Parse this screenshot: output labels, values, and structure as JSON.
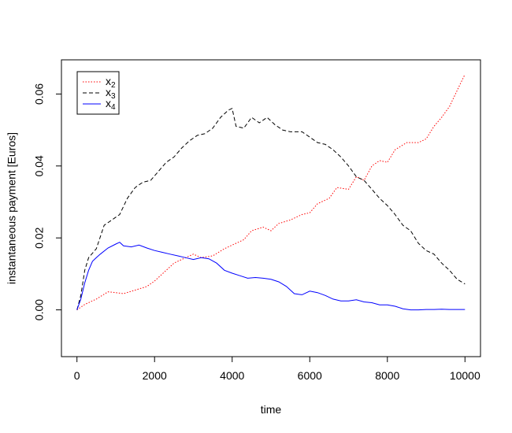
{
  "chart_data": {
    "type": "line",
    "title": "",
    "xlabel": "time",
    "ylabel": "instantaneous payment [Euros]",
    "xlim": [
      -400,
      10400
    ],
    "ylim": [
      -0.013,
      0.0695
    ],
    "xticks": [
      0,
      2000,
      4000,
      6000,
      8000,
      10000
    ],
    "yticks": [
      0.0,
      0.02,
      0.04,
      0.06
    ],
    "xtick_labels": [
      "0",
      "2000",
      "4000",
      "6000",
      "8000",
      "10000"
    ],
    "ytick_labels": [
      "0.00",
      "0.02",
      "0.04",
      "0.06"
    ],
    "grid": false,
    "legend_position": "top-left",
    "series": [
      {
        "name": "x",
        "name_sub": "2",
        "color": "#ff0000",
        "dash": "dotted",
        "points": [
          [
            0,
            0
          ],
          [
            200,
            0.0015
          ],
          [
            500,
            0.003
          ],
          [
            800,
            0.005
          ],
          [
            1000,
            0.0048
          ],
          [
            1200,
            0.0045
          ],
          [
            1500,
            0.0055
          ],
          [
            1800,
            0.0065
          ],
          [
            2000,
            0.008
          ],
          [
            2200,
            0.01
          ],
          [
            2500,
            0.013
          ],
          [
            2800,
            0.0145
          ],
          [
            3000,
            0.0155
          ],
          [
            3200,
            0.0145
          ],
          [
            3500,
            0.015
          ],
          [
            3800,
            0.017
          ],
          [
            4000,
            0.018
          ],
          [
            4300,
            0.0195
          ],
          [
            4500,
            0.022
          ],
          [
            4800,
            0.023
          ],
          [
            5000,
            0.022
          ],
          [
            5200,
            0.024
          ],
          [
            5500,
            0.025
          ],
          [
            5800,
            0.0265
          ],
          [
            6000,
            0.027
          ],
          [
            6200,
            0.0295
          ],
          [
            6500,
            0.031
          ],
          [
            6700,
            0.034
          ],
          [
            7000,
            0.0335
          ],
          [
            7200,
            0.037
          ],
          [
            7400,
            0.036
          ],
          [
            7600,
            0.04
          ],
          [
            7800,
            0.0415
          ],
          [
            8000,
            0.041
          ],
          [
            8200,
            0.0445
          ],
          [
            8500,
            0.0465
          ],
          [
            8800,
            0.0465
          ],
          [
            9000,
            0.0475
          ],
          [
            9200,
            0.051
          ],
          [
            9400,
            0.0535
          ],
          [
            9600,
            0.0565
          ],
          [
            9800,
            0.061
          ],
          [
            10000,
            0.0655
          ]
        ]
      },
      {
        "name": "x",
        "name_sub": "3",
        "color": "#000000",
        "dash": "dashed",
        "points": [
          [
            0,
            0
          ],
          [
            100,
            0.004
          ],
          [
            200,
            0.011
          ],
          [
            300,
            0.0145
          ],
          [
            500,
            0.017
          ],
          [
            700,
            0.0235
          ],
          [
            900,
            0.025
          ],
          [
            1100,
            0.0265
          ],
          [
            1300,
            0.031
          ],
          [
            1500,
            0.034
          ],
          [
            1700,
            0.0355
          ],
          [
            1900,
            0.036
          ],
          [
            2100,
            0.0385
          ],
          [
            2300,
            0.041
          ],
          [
            2500,
            0.0425
          ],
          [
            2700,
            0.045
          ],
          [
            2900,
            0.047
          ],
          [
            3100,
            0.0485
          ],
          [
            3300,
            0.049
          ],
          [
            3500,
            0.0505
          ],
          [
            3700,
            0.0535
          ],
          [
            3900,
            0.0555
          ],
          [
            4000,
            0.056
          ],
          [
            4100,
            0.051
          ],
          [
            4300,
            0.0505
          ],
          [
            4500,
            0.0535
          ],
          [
            4700,
            0.052
          ],
          [
            4900,
            0.0535
          ],
          [
            5100,
            0.0515
          ],
          [
            5300,
            0.05
          ],
          [
            5500,
            0.0495
          ],
          [
            5800,
            0.0495
          ],
          [
            6000,
            0.048
          ],
          [
            6200,
            0.0465
          ],
          [
            6400,
            0.046
          ],
          [
            6600,
            0.0445
          ],
          [
            6800,
            0.0425
          ],
          [
            7000,
            0.04
          ],
          [
            7200,
            0.037
          ],
          [
            7400,
            0.036
          ],
          [
            7600,
            0.0335
          ],
          [
            7800,
            0.031
          ],
          [
            8000,
            0.029
          ],
          [
            8200,
            0.0265
          ],
          [
            8400,
            0.0235
          ],
          [
            8600,
            0.022
          ],
          [
            8800,
            0.0185
          ],
          [
            9000,
            0.0165
          ],
          [
            9200,
            0.0155
          ],
          [
            9400,
            0.013
          ],
          [
            9600,
            0.011
          ],
          [
            9800,
            0.0085
          ],
          [
            10000,
            0.0072
          ]
        ]
      },
      {
        "name": "x",
        "name_sub": "4",
        "color": "#0000ff",
        "dash": "solid",
        "points": [
          [
            0,
            0
          ],
          [
            100,
            0.003
          ],
          [
            200,
            0.0075
          ],
          [
            300,
            0.011
          ],
          [
            400,
            0.0135
          ],
          [
            500,
            0.0145
          ],
          [
            600,
            0.0155
          ],
          [
            800,
            0.0172
          ],
          [
            1000,
            0.0183
          ],
          [
            1100,
            0.0188
          ],
          [
            1200,
            0.0178
          ],
          [
            1400,
            0.0175
          ],
          [
            1600,
            0.018
          ],
          [
            1800,
            0.0172
          ],
          [
            2000,
            0.0165
          ],
          [
            2200,
            0.016
          ],
          [
            2400,
            0.0155
          ],
          [
            2600,
            0.015
          ],
          [
            2800,
            0.0145
          ],
          [
            3000,
            0.014
          ],
          [
            3200,
            0.0145
          ],
          [
            3400,
            0.0142
          ],
          [
            3600,
            0.013
          ],
          [
            3800,
            0.011
          ],
          [
            4000,
            0.0102
          ],
          [
            4200,
            0.0095
          ],
          [
            4400,
            0.0088
          ],
          [
            4600,
            0.009
          ],
          [
            4800,
            0.0088
          ],
          [
            5000,
            0.0085
          ],
          [
            5200,
            0.0078
          ],
          [
            5400,
            0.0065
          ],
          [
            5600,
            0.0045
          ],
          [
            5800,
            0.0042
          ],
          [
            6000,
            0.0052
          ],
          [
            6200,
            0.0048
          ],
          [
            6400,
            0.004
          ],
          [
            6600,
            0.003
          ],
          [
            6800,
            0.0025
          ],
          [
            7000,
            0.0025
          ],
          [
            7200,
            0.0028
          ],
          [
            7400,
            0.0022
          ],
          [
            7600,
            0.002
          ],
          [
            7800,
            0.0014
          ],
          [
            8000,
            0.0014
          ],
          [
            8200,
            0.001
          ],
          [
            8400,
            0.0003
          ],
          [
            8600,
            0.0
          ],
          [
            8800,
            0.0
          ],
          [
            9000,
            0.0001
          ],
          [
            9200,
            0.0001
          ],
          [
            9400,
            0.0002
          ],
          [
            9600,
            0.0001
          ],
          [
            9800,
            0.0001
          ],
          [
            10000,
            0.0001
          ]
        ]
      }
    ]
  }
}
